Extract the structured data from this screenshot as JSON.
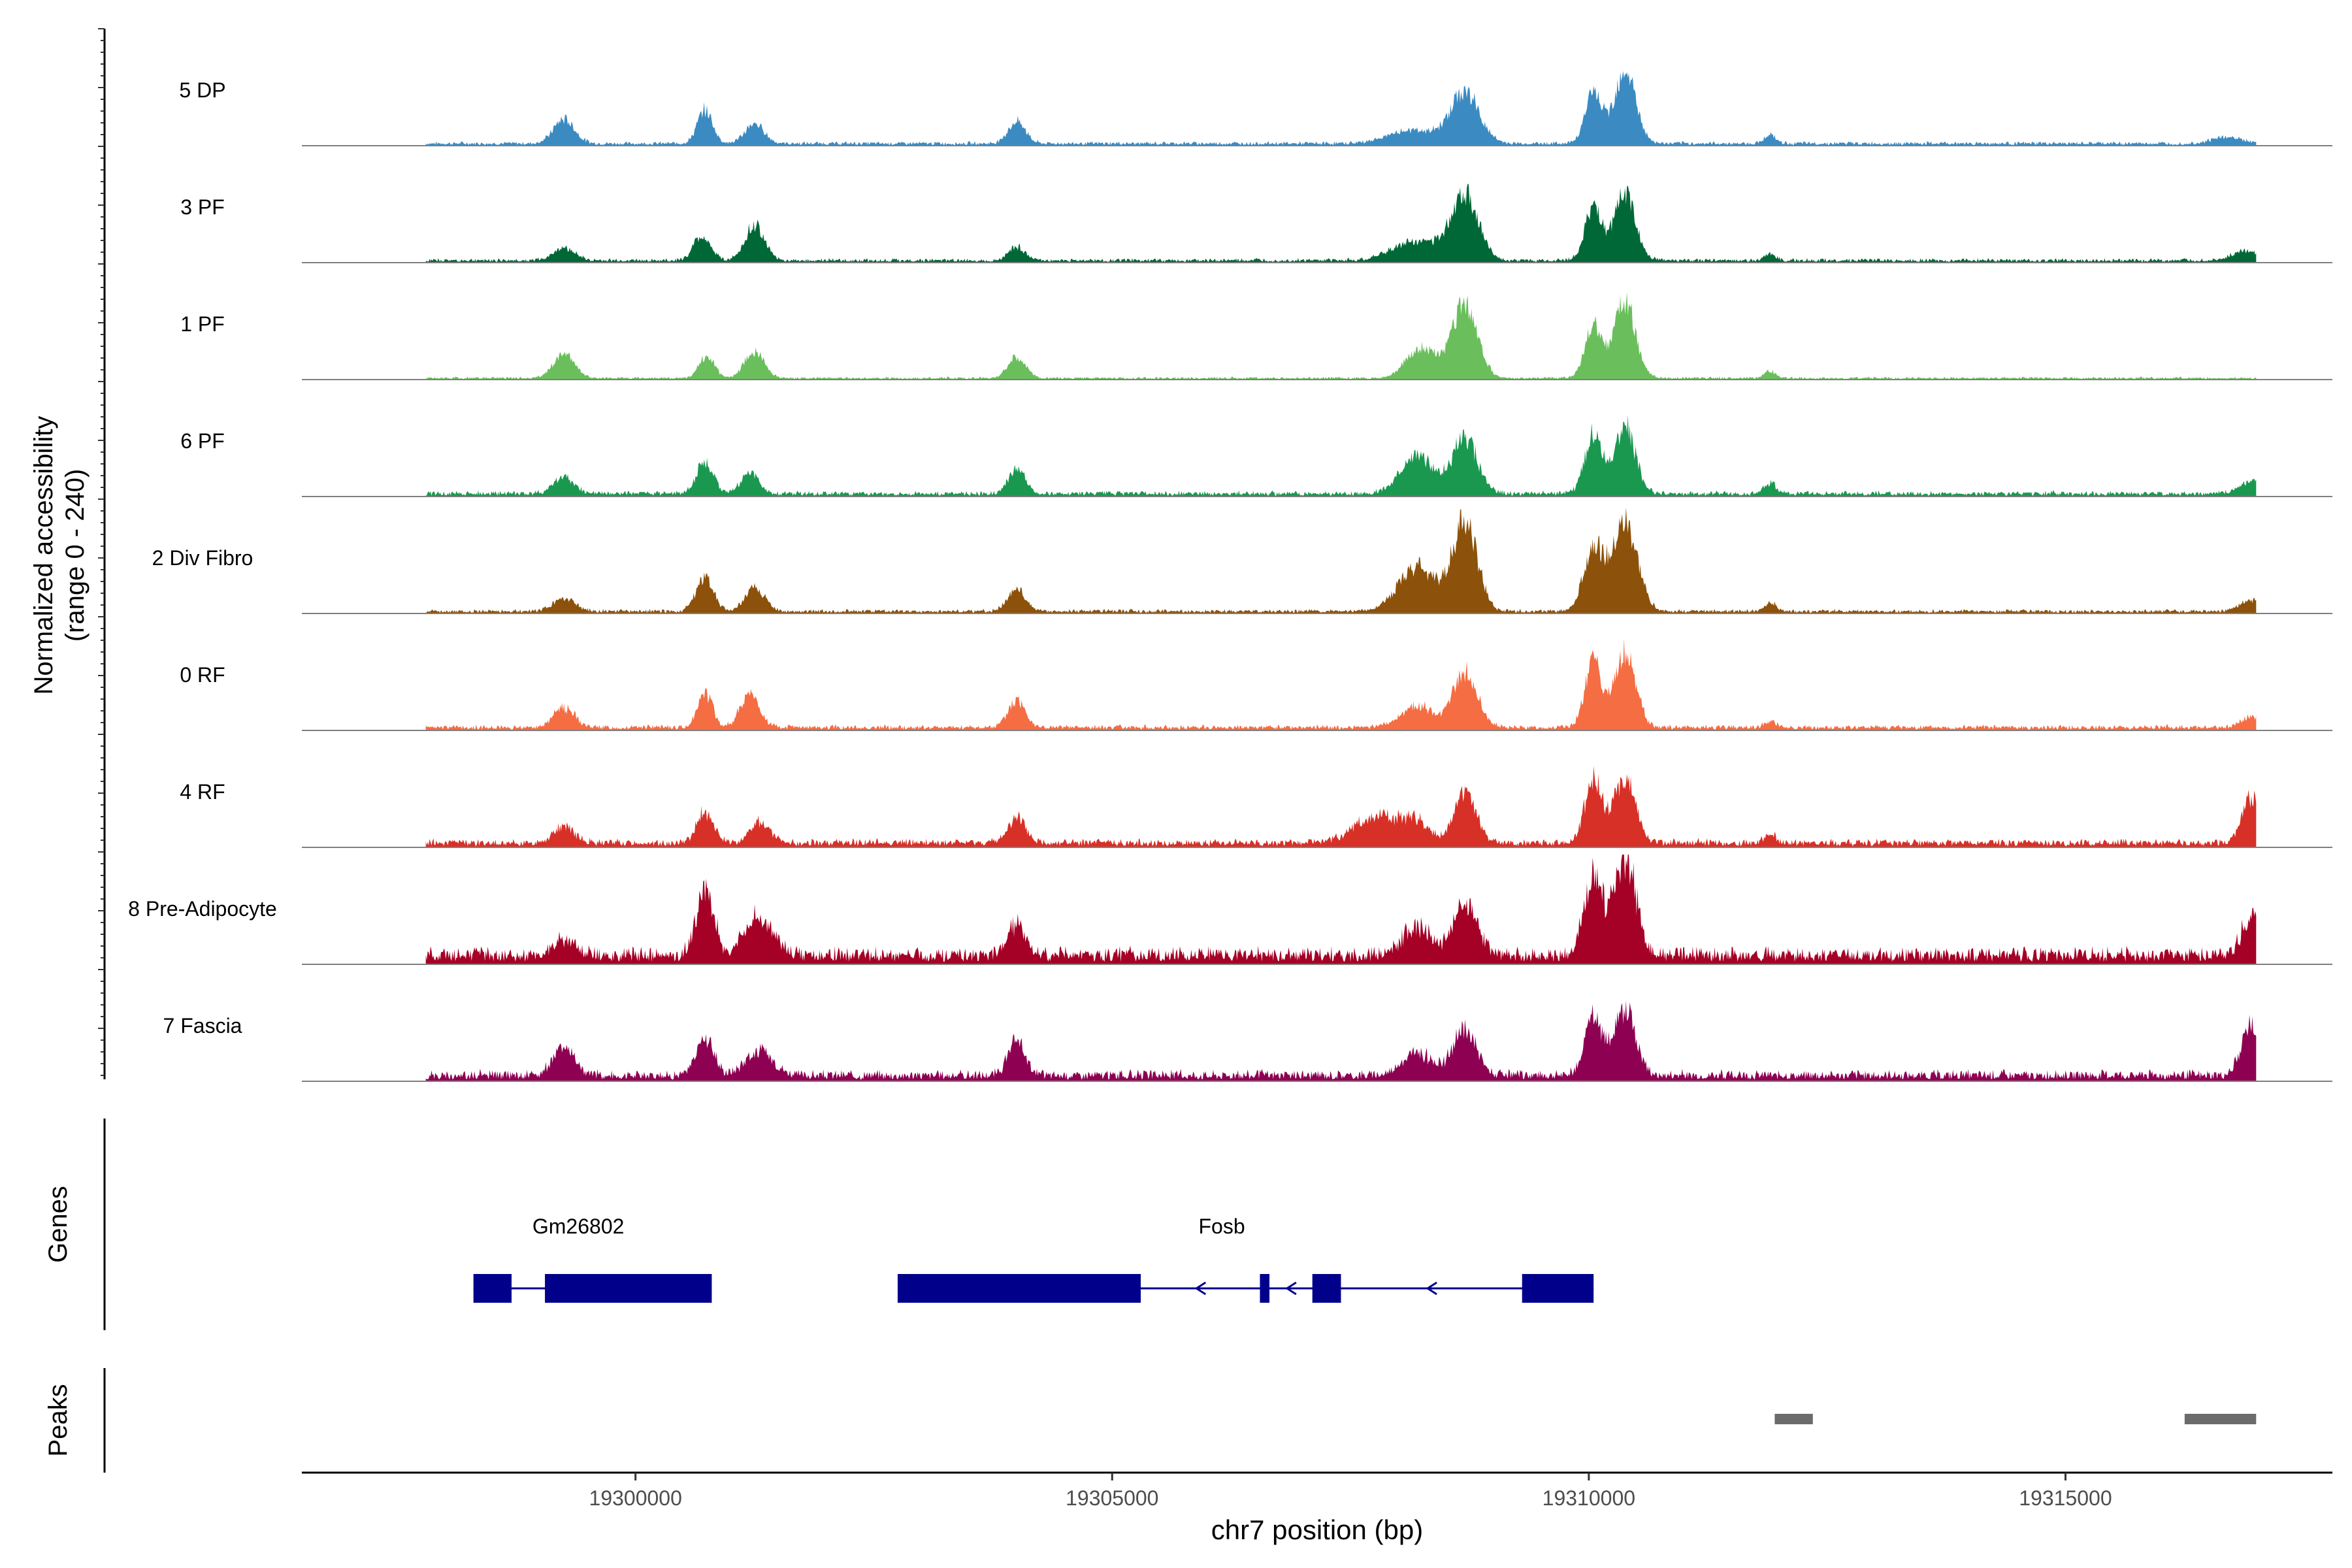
{
  "chart_data": {
    "type": "coverage-track",
    "y_axis_label_line1": "Normalized accessibility",
    "y_axis_label_line2": "(range 0 - 240)",
    "y_range": [
      0,
      240
    ],
    "x_label": "chr7 position (bp)",
    "x_range": [
      19296500,
      19317800
    ],
    "x_ticks": [
      {
        "value": 19300000,
        "label": "19300000"
      },
      {
        "value": 19305000,
        "label": "19305000"
      },
      {
        "value": 19310000,
        "label": "19310000"
      },
      {
        "value": 19315000,
        "label": "19315000"
      }
    ],
    "coverage_start": 19297800,
    "coverage_end": 19317000,
    "tracks": [
      {
        "name": "5 DP",
        "color": "#3B8BC2",
        "noise": 3,
        "peaks": [
          [
            19299250,
            22,
            110
          ],
          [
            19300730,
            30,
            80
          ],
          [
            19301250,
            18,
            100
          ],
          [
            19304000,
            20,
            90
          ],
          [
            19308150,
            12,
            250
          ],
          [
            19308700,
            46,
            150
          ],
          [
            19310050,
            45,
            90
          ],
          [
            19310380,
            68,
            110
          ],
          [
            19311900,
            8,
            60
          ],
          [
            19316700,
            6,
            150
          ]
        ]
      },
      {
        "name": "3 PF",
        "color": "#006837",
        "noise": 3,
        "peaks": [
          [
            19299250,
            12,
            110
          ],
          [
            19300700,
            22,
            90
          ],
          [
            19301250,
            32,
            100
          ],
          [
            19304000,
            12,
            90
          ],
          [
            19308200,
            18,
            250
          ],
          [
            19308700,
            60,
            140
          ],
          [
            19310050,
            48,
            90
          ],
          [
            19310380,
            60,
            110
          ],
          [
            19311900,
            6,
            60
          ],
          [
            19316900,
            8,
            150
          ]
        ]
      },
      {
        "name": "1 PF",
        "color": "#6ABF5C",
        "noise": 2,
        "peaks": [
          [
            19299250,
            22,
            110
          ],
          [
            19300750,
            20,
            80
          ],
          [
            19301250,
            25,
            100
          ],
          [
            19304000,
            20,
            90
          ],
          [
            19308250,
            28,
            160
          ],
          [
            19308700,
            67,
            130
          ],
          [
            19310050,
            50,
            90
          ],
          [
            19310380,
            70,
            110
          ],
          [
            19311900,
            6,
            60
          ]
        ]
      },
      {
        "name": "6 PF",
        "color": "#1A9850",
        "noise": 4,
        "peaks": [
          [
            19299250,
            15,
            110
          ],
          [
            19300730,
            28,
            90
          ],
          [
            19301200,
            18,
            100
          ],
          [
            19304000,
            22,
            90
          ],
          [
            19308200,
            35,
            170
          ],
          [
            19308700,
            50,
            130
          ],
          [
            19310050,
            55,
            90
          ],
          [
            19310380,
            60,
            110
          ],
          [
            19311900,
            10,
            60
          ],
          [
            19316950,
            12,
            120
          ]
        ]
      },
      {
        "name": "2 Div Fibro",
        "color": "#8C510A",
        "noise": 3,
        "peaks": [
          [
            19299250,
            12,
            110
          ],
          [
            19300730,
            30,
            90
          ],
          [
            19301250,
            22,
            100
          ],
          [
            19304000,
            22,
            90
          ],
          [
            19308200,
            40,
            200
          ],
          [
            19308700,
            80,
            130
          ],
          [
            19310050,
            60,
            100
          ],
          [
            19310380,
            80,
            130
          ],
          [
            19311900,
            8,
            60
          ],
          [
            19316950,
            10,
            120
          ]
        ]
      },
      {
        "name": "0 RF",
        "color": "#F46D43",
        "noise": 4,
        "peaks": [
          [
            19299250,
            18,
            110
          ],
          [
            19300730,
            30,
            80
          ],
          [
            19301200,
            30,
            100
          ],
          [
            19304000,
            25,
            90
          ],
          [
            19308200,
            20,
            160
          ],
          [
            19308700,
            50,
            130
          ],
          [
            19310050,
            60,
            90
          ],
          [
            19310380,
            70,
            110
          ],
          [
            19311900,
            6,
            60
          ],
          [
            19316950,
            10,
            100
          ]
        ]
      },
      {
        "name": "4 RF",
        "color": "#D73027",
        "noise": 6,
        "peaks": [
          [
            19299250,
            15,
            110
          ],
          [
            19300730,
            28,
            90
          ],
          [
            19301300,
            20,
            100
          ],
          [
            19304000,
            22,
            90
          ],
          [
            19307800,
            25,
            250
          ],
          [
            19308200,
            15,
            120
          ],
          [
            19308700,
            45,
            120
          ],
          [
            19310050,
            55,
            90
          ],
          [
            19310380,
            60,
            110
          ],
          [
            19311900,
            8,
            60
          ],
          [
            19316950,
            40,
            100
          ]
        ]
      },
      {
        "name": "8 Pre-Adipocyte",
        "color": "#A50026",
        "noise": 12,
        "peaks": [
          [
            19299250,
            15,
            110
          ],
          [
            19300730,
            62,
            90
          ],
          [
            19301300,
            35,
            150
          ],
          [
            19304000,
            28,
            90
          ],
          [
            19308200,
            25,
            150
          ],
          [
            19308700,
            50,
            120
          ],
          [
            19310050,
            70,
            100
          ],
          [
            19310380,
            92,
            110
          ],
          [
            19316950,
            35,
            100
          ]
        ]
      },
      {
        "name": "7 Fascia",
        "color": "#8E0152",
        "noise": 8,
        "peaks": [
          [
            19299250,
            25,
            110
          ],
          [
            19300730,
            35,
            90
          ],
          [
            19301300,
            22,
            150
          ],
          [
            19304000,
            30,
            90
          ],
          [
            19308200,
            20,
            160
          ],
          [
            19308700,
            42,
            120
          ],
          [
            19310050,
            55,
            90
          ],
          [
            19310380,
            62,
            110
          ],
          [
            19316950,
            45,
            100
          ]
        ]
      }
    ],
    "genes": [
      {
        "name": "Gm26802",
        "label_position": 19299400,
        "exons": [
          [
            19298300,
            19298700
          ],
          [
            19299050,
            19300800
          ]
        ]
      },
      {
        "name": "Fosb",
        "label_position": 19306150,
        "direction": "-",
        "exons": [
          [
            19302750,
            19305300
          ],
          [
            19306550,
            19306650
          ],
          [
            19307100,
            19307400
          ],
          [
            19309300,
            19310050
          ]
        ]
      }
    ],
    "peaks": [
      [
        19311950,
        19312350
      ],
      [
        19316250,
        19317000
      ]
    ],
    "genes_label": "Genes",
    "peaks_label": "Peaks"
  }
}
